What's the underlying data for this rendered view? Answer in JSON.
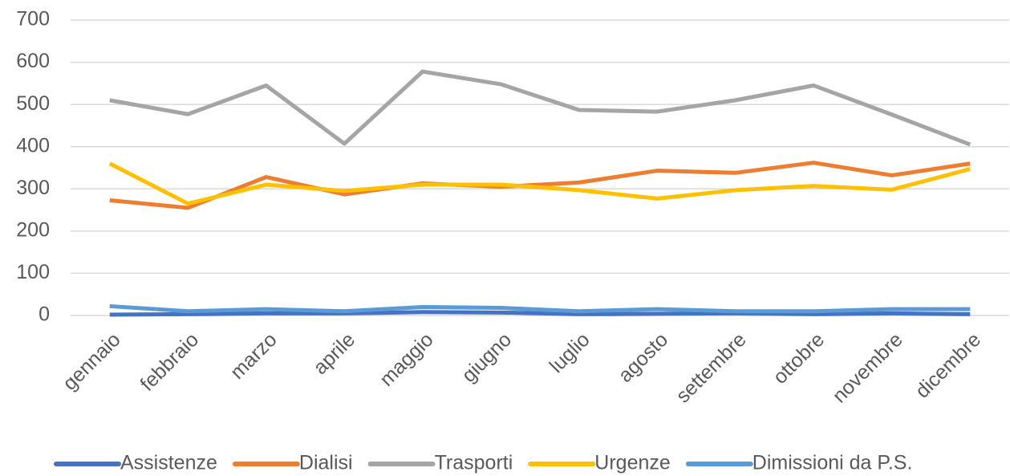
{
  "chart_data": {
    "type": "line",
    "categories": [
      "gennaio",
      "febbraio",
      "marzo",
      "aprile",
      "maggio",
      "giugno",
      "luglio",
      "agosto",
      "settembre",
      "ottobre",
      "novembre",
      "dicembre"
    ],
    "series": [
      {
        "name": "Assistenze",
        "color": "#4472c4",
        "values": [
          2,
          3,
          5,
          5,
          8,
          7,
          3,
          4,
          5,
          3,
          5,
          3
        ]
      },
      {
        "name": "Dialisi",
        "color": "#ed7d31",
        "values": [
          273,
          255,
          328,
          287,
          313,
          305,
          315,
          343,
          338,
          362,
          332,
          360
        ]
      },
      {
        "name": "Trasporti",
        "color": "#a5a5a5",
        "values": [
          510,
          477,
          545,
          407,
          578,
          548,
          487,
          483,
          510,
          545,
          476,
          405
        ]
      },
      {
        "name": "Urgenze",
        "color": "#ffc000",
        "values": [
          360,
          265,
          310,
          295,
          310,
          310,
          297,
          277,
          297,
          307,
          298,
          347
        ]
      },
      {
        "name": "Dimissioni da P.S.",
        "color": "#5b9bd5",
        "values": [
          22,
          10,
          15,
          10,
          20,
          18,
          10,
          15,
          10,
          10,
          15,
          15
        ]
      }
    ],
    "ylim": [
      0,
      700
    ],
    "yticks": [
      0,
      100,
      200,
      300,
      400,
      500,
      600,
      700
    ],
    "grid": true,
    "legend": "bottom"
  }
}
